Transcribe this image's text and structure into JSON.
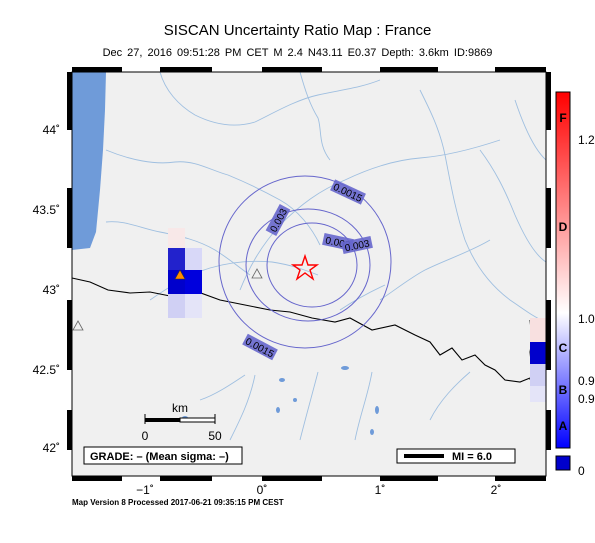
{
  "title": "SISCAN Uncertainty Ratio Map : France",
  "subtitle": "Dec 27, 2016 09:51:28 PM CET   M 2.4   N43.11 E0.37   Depth: 3.6km   ID:9869",
  "footer": "Map Version 8 Processed 2017-06-21 09:35:15 PM CEST",
  "axes": {
    "lat_ticks": [
      "44˚",
      "43.5˚",
      "43˚",
      "42.5˚",
      "42˚"
    ],
    "lon_ticks": [
      "−1˚",
      "0˚",
      "1˚",
      "2˚"
    ]
  },
  "contours": {
    "labels": [
      "0.0015",
      "0.003",
      "0.0015",
      "0.003",
      "0.003",
      "0.0015"
    ]
  },
  "scalebar": {
    "unit": "km",
    "start": "0",
    "end": "50"
  },
  "grade": "GRADE: – (Mean sigma: –)",
  "legend": {
    "label": "MI = 6.0"
  },
  "colorbar": {
    "letters": [
      "F",
      "D",
      "C",
      "B",
      "A"
    ],
    "values": [
      "1.2",
      "1.0",
      "0.9",
      "0.9",
      "0"
    ],
    "colors": {
      "top": "#ff0000",
      "middle": "#ffffff",
      "bottom": "#0000ff",
      "nan": "#0000cc"
    }
  },
  "colors": {
    "land": "#f0f0f0",
    "water": "#6f9bd9",
    "rivers": "#9fbfe0",
    "contour": "#6666cc",
    "epicenter": "#ff0000",
    "station": "#ff8c00"
  }
}
